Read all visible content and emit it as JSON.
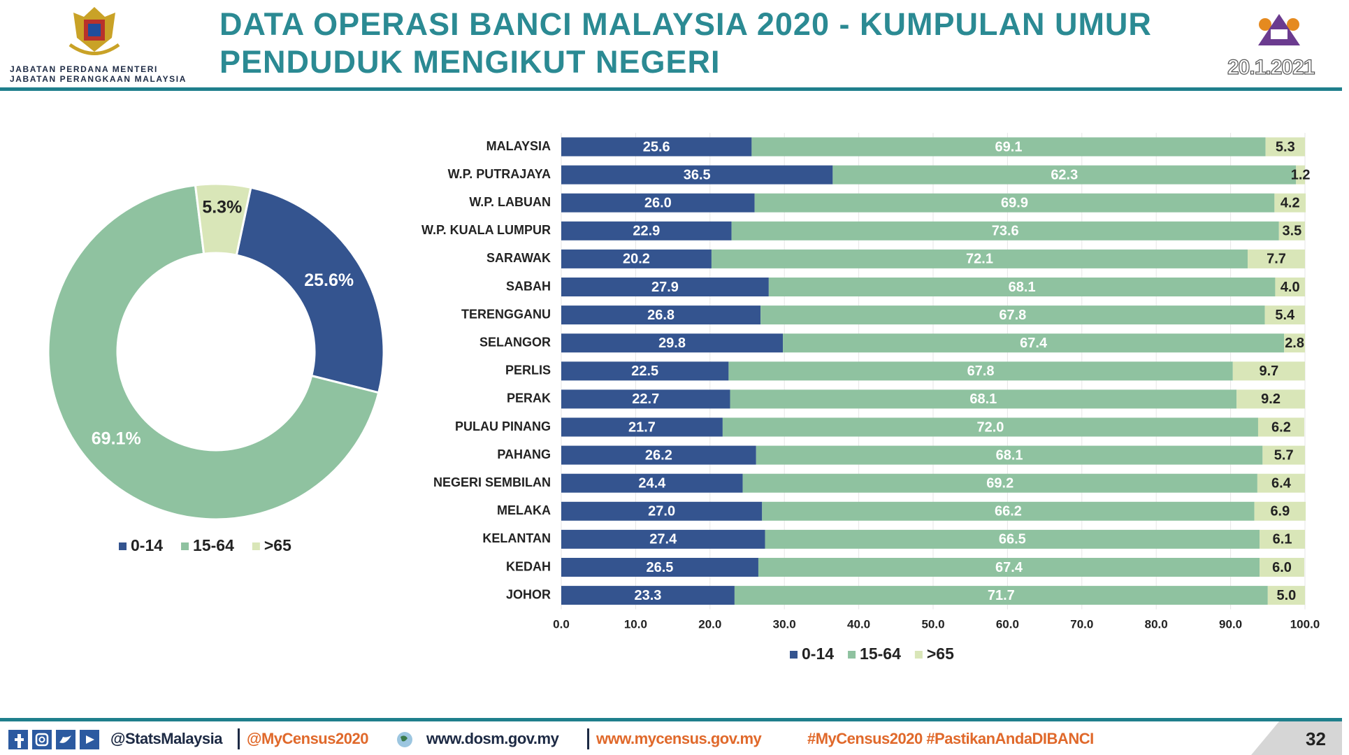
{
  "header": {
    "agency_lines": [
      "JABATAN PERDANA MENTERI",
      "JABATAN PERANGKAAN MALAYSIA"
    ],
    "title_lines": [
      "DATA OPERASI BANCI MALAYSIA 2020 - KUMPULAN UMUR",
      "PENDUDUK MENGIKUT NEGERI"
    ],
    "date": "20.1.2021"
  },
  "chart_data": [
    {
      "type": "donut",
      "categories": [
        "0-14",
        "15-64",
        ">65"
      ],
      "values": [
        25.6,
        69.1,
        5.3
      ],
      "value_labels": [
        "25.6%",
        "69.1%",
        "5.3%"
      ],
      "colors": [
        "#34548f",
        "#8fc2a0",
        "#d9e6b8"
      ],
      "legend": "bottom"
    },
    {
      "type": "stacked-barh",
      "categories": [
        "MALAYSIA",
        "W.P. PUTRAJAYA",
        "W.P. LABUAN",
        "W.P. KUALA LUMPUR",
        "SARAWAK",
        "SABAH",
        "TERENGGANU",
        "SELANGOR",
        "PERLIS",
        "PERAK",
        "PULAU PINANG",
        "PAHANG",
        "NEGERI SEMBILAN",
        "MELAKA",
        "KELANTAN",
        "KEDAH",
        "JOHOR"
      ],
      "series": [
        {
          "name": "0-14",
          "color": "#34548f",
          "values": [
            25.6,
            36.5,
            26.0,
            22.9,
            20.2,
            27.9,
            26.8,
            29.8,
            22.5,
            22.7,
            21.7,
            26.2,
            24.4,
            27.0,
            27.4,
            26.5,
            23.3
          ],
          "value_labels": [
            "25.6",
            "36.5",
            "26.0",
            "22.9",
            "20.2",
            "27.9",
            "26.8",
            "29.8",
            "22.5",
            "22.7",
            "21.7",
            "26.2",
            "24.4",
            "27.0",
            "27.4",
            "26.5",
            "23.3"
          ]
        },
        {
          "name": "15-64",
          "color": "#8fc2a0",
          "values": [
            69.1,
            62.3,
            69.9,
            73.6,
            72.1,
            68.1,
            67.8,
            67.4,
            67.8,
            68.1,
            72.0,
            68.1,
            69.2,
            66.2,
            66.5,
            67.4,
            71.7
          ],
          "value_labels": [
            "69.1",
            "62.3",
            "69.9",
            "73.6",
            "72.1",
            "68.1",
            "67.8",
            "67.4",
            "67.8",
            "68.1",
            "72.0",
            "68.1",
            "69.2",
            "66.2",
            "66.5",
            "67.4",
            "71.7"
          ]
        },
        {
          "name": ">65",
          "color": "#d9e6b8",
          "values": [
            5.3,
            1.2,
            4.2,
            3.5,
            7.7,
            4.0,
            5.4,
            2.8,
            9.7,
            9.2,
            6.2,
            5.7,
            6.4,
            6.9,
            6.1,
            6.0,
            5.0
          ],
          "value_labels": [
            "5.3",
            "1.2",
            "4.2",
            "3.5",
            "7.7",
            "4.0",
            "5.4",
            "2.8",
            "9.7",
            "9.2",
            "6.2",
            "5.7",
            "6.4",
            "6.9",
            "6.1",
            "6.0",
            "5.0"
          ]
        }
      ],
      "xlim": [
        0,
        100
      ],
      "xticks": [
        {
          "value": 0,
          "label": "0.0"
        },
        {
          "value": 10,
          "label": "10.0"
        },
        {
          "value": 20,
          "label": "20.0"
        },
        {
          "value": 30,
          "label": "30.0"
        },
        {
          "value": 40,
          "label": "40.0"
        },
        {
          "value": 50,
          "label": "50.0"
        },
        {
          "value": 60,
          "label": "60.0"
        },
        {
          "value": 70,
          "label": "70.0"
        },
        {
          "value": 80,
          "label": "80.0"
        },
        {
          "value": 90,
          "label": "90.0"
        },
        {
          "value": 100,
          "label": "100.0"
        }
      ],
      "legend": "bottom"
    }
  ],
  "footer": {
    "social": "@StatsMalaysia",
    "census_handle": "@MyCensus2020",
    "site": "www.dosm.gov.my",
    "census_site": "www.mycensus.gov.my",
    "hashtags": "#MyCensus2020 #PastikanAndaDIBANCI",
    "page": "32"
  }
}
